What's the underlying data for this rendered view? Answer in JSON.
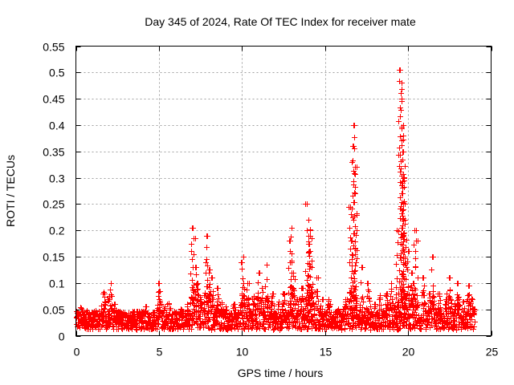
{
  "chart_data": {
    "type": "scatter",
    "title": "Day 345 of 2024, Rate Of TEC Index for receiver mate",
    "xlabel": "GPS time / hours",
    "ylabel": "ROTI / TECUs",
    "xlim": [
      0,
      25
    ],
    "ylim": [
      0,
      0.55
    ],
    "xticks": [
      0,
      5,
      10,
      15,
      20,
      25
    ],
    "xtick_labels": [
      "0",
      "5",
      "10",
      "15",
      "20",
      "25"
    ],
    "yticks": [
      0,
      0.05,
      0.1,
      0.15,
      0.2,
      0.25,
      0.3,
      0.35,
      0.4,
      0.45,
      0.5,
      0.55
    ],
    "ytick_labels": [
      "0",
      "0.05",
      "0.1",
      "0.15",
      "0.2",
      "0.25",
      "0.3",
      "0.35",
      "0.4",
      "0.45",
      "0.5",
      "0.55"
    ],
    "grid": true,
    "marker": "+",
    "color": "#ff0000",
    "series": [
      {
        "name": "ROTI",
        "x": [
          0.1,
          0.3,
          0.5,
          0.7,
          0.9,
          1.2,
          1.5,
          1.7,
          1.8,
          2.0,
          2.1,
          2.3,
          2.5,
          2.8,
          3.0,
          3.5,
          4.0,
          4.2,
          4.5,
          4.8,
          5.0,
          5.0,
          5.3,
          5.6,
          6.0,
          6.3,
          6.7,
          7.0,
          7.1,
          7.2,
          7.3,
          7.5,
          7.8,
          7.9,
          8.0,
          8.2,
          8.5,
          8.8,
          9.0,
          9.5,
          10.0,
          10.1,
          10.3,
          10.7,
          11.0,
          11.2,
          11.5,
          11.8,
          12.2,
          12.5,
          12.9,
          13.0,
          13.0,
          13.1,
          13.3,
          13.6,
          13.9,
          14.0,
          14.0,
          14.1,
          14.1,
          14.2,
          14.5,
          14.8,
          15.2,
          15.5,
          15.8,
          16.2,
          16.5,
          16.6,
          16.7,
          16.7,
          16.8,
          16.8,
          17.2,
          17.6,
          18.0,
          18.3,
          18.7,
          19.0,
          19.3,
          19.5,
          19.6,
          19.6,
          19.7,
          19.7,
          19.7,
          19.8,
          19.8,
          20.0,
          20.2,
          20.3,
          20.4,
          20.5,
          20.9,
          21.3,
          21.5,
          21.9,
          22.3,
          22.5,
          22.8,
          23.0,
          23.3,
          23.6,
          23.8,
          24.0
        ],
        "y": [
          0.04,
          0.05,
          0.03,
          0.045,
          0.035,
          0.04,
          0.05,
          0.08,
          0.03,
          0.07,
          0.1,
          0.06,
          0.03,
          0.02,
          0.025,
          0.02,
          0.03,
          0.055,
          0.04,
          0.03,
          0.07,
          0.1,
          0.05,
          0.06,
          0.04,
          0.05,
          0.055,
          0.205,
          0.185,
          0.13,
          0.1,
          0.07,
          0.14,
          0.19,
          0.125,
          0.11,
          0.09,
          0.06,
          0.05,
          0.06,
          0.14,
          0.15,
          0.1,
          0.07,
          0.12,
          0.09,
          0.135,
          0.08,
          0.06,
          0.08,
          0.18,
          0.205,
          0.14,
          0.12,
          0.07,
          0.09,
          0.25,
          0.22,
          0.19,
          0.2,
          0.16,
          0.13,
          0.11,
          0.07,
          0.06,
          0.04,
          0.05,
          0.07,
          0.245,
          0.18,
          0.4,
          0.36,
          0.32,
          0.27,
          0.13,
          0.1,
          0.06,
          0.07,
          0.08,
          0.1,
          0.2,
          0.505,
          0.48,
          0.45,
          0.4,
          0.35,
          0.3,
          0.25,
          0.22,
          0.16,
          0.12,
          0.1,
          0.2,
          0.18,
          0.11,
          0.08,
          0.15,
          0.08,
          0.07,
          0.11,
          0.06,
          0.1,
          0.065,
          0.095,
          0.07,
          0.05
        ]
      }
    ]
  }
}
